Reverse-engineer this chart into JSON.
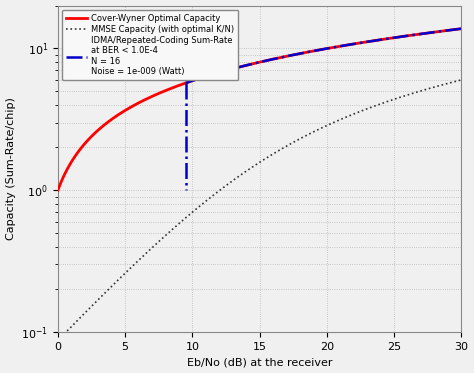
{
  "xlabel": "Eb/No (dB) at the receiver",
  "ylabel": "Capacity (Sum-Rate/chip)",
  "xlim": [
    0,
    30
  ],
  "ylim": [
    0.1,
    20.0
  ],
  "cover_wyner_color": "#ff0000",
  "mmse_color": "#333333",
  "idma_color": "#0000cc",
  "grid_color": "#aaaaaa",
  "bg_color": "#f0f0f0",
  "legend_labels": [
    "Cover-Wyner Optimal Capacity",
    "MMSE Capacity (with optimal K/N)",
    "IDMA/Repeated-Coding Sum-Rate\nat BER < 1.0E-4\nN = 16\nNoise = 1e-009 (Watt)"
  ],
  "N": 16,
  "x_ticks": [
    0,
    5,
    10,
    15,
    20,
    25,
    30
  ],
  "idma_x_threshold": 9.5,
  "idma_y_bottom": 1.0
}
